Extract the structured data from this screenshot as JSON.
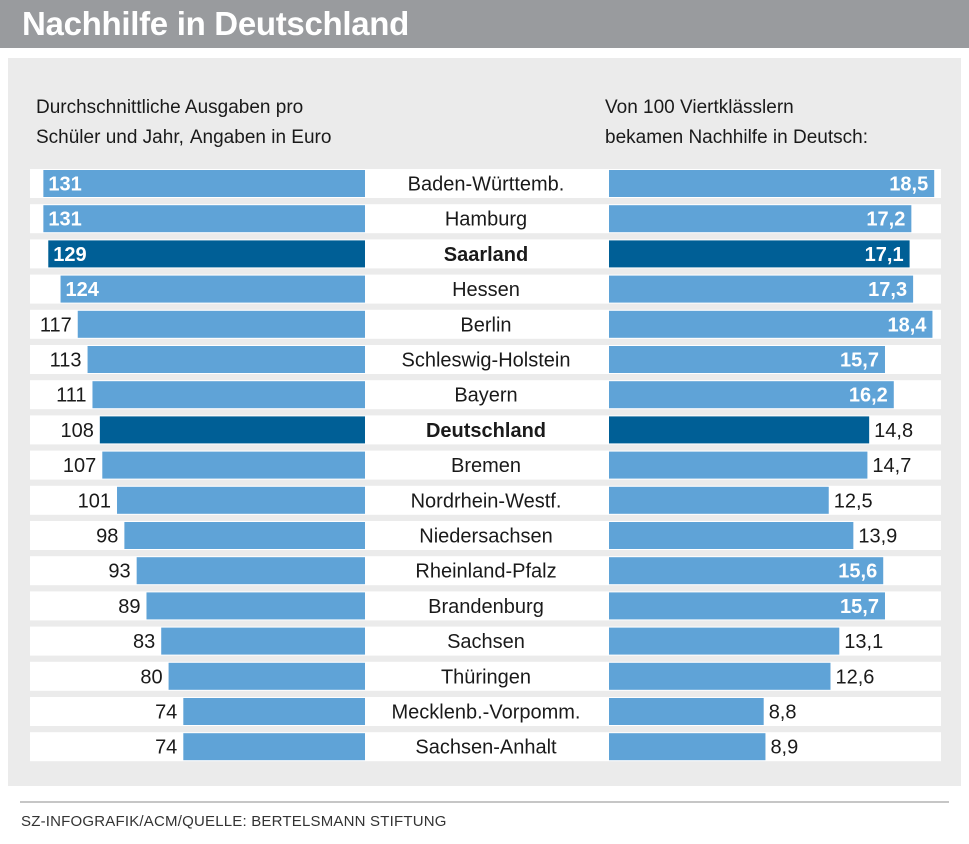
{
  "title": "Nachhilfe in Deutschland",
  "source": "SZ-INFOGRAFIK/ACM/QUELLE: BERTELSMANN STIFTUNG",
  "colors": {
    "bar": "#5fa3d7",
    "highlight": "#005f96",
    "band": "#ffffff",
    "panel": "#ebebeb",
    "header": "#999b9e",
    "text": "#1a1a1a"
  },
  "chart_data": [
    {
      "type": "bar",
      "orientation": "horizontal",
      "direction": "right-to-left",
      "title_line1": "Durchschnittliche Ausgaben pro",
      "title_line2": "Schüler und Jahr,",
      "title_unit": "Angaben in Euro",
      "categories": [
        "Baden-Württemb.",
        "Hamburg",
        "Saarland",
        "Hessen",
        "Berlin",
        "Schleswig-Holstein",
        "Bayern",
        "Deutschland",
        "Bremen",
        "Nordrhein-Westf.",
        "Niedersachsen",
        "Rheinland-Pfalz",
        "Brandenburg",
        "Sachsen",
        "Thüringen",
        "Mecklenb.-Vorpomm.",
        "Sachsen-Anhalt"
      ],
      "values": [
        131,
        131,
        129,
        124,
        117,
        113,
        111,
        108,
        107,
        101,
        98,
        93,
        89,
        83,
        80,
        74,
        74
      ],
      "labels": [
        "131",
        "131",
        "129",
        "124",
        "117",
        "113",
        "111",
        "108",
        "107",
        "101",
        "98",
        "93",
        "89",
        "83",
        "80",
        "74",
        "74"
      ],
      "highlighted": [
        "Saarland",
        "Deutschland"
      ],
      "xlim": [
        0,
        134
      ]
    },
    {
      "type": "bar",
      "orientation": "horizontal",
      "direction": "left-to-right",
      "title_line1": "Von 100 Viertklässlern",
      "title_line2": "bekamen Nachhilfe in Deutsch:",
      "categories": [
        "Baden-Württemb.",
        "Hamburg",
        "Saarland",
        "Hessen",
        "Berlin",
        "Schleswig-Holstein",
        "Bayern",
        "Deutschland",
        "Bremen",
        "Nordrhein-Westf.",
        "Niedersachsen",
        "Rheinland-Pfalz",
        "Brandenburg",
        "Sachsen",
        "Thüringen",
        "Mecklenb.-Vorpomm.",
        "Sachsen-Anhalt"
      ],
      "values": [
        18.5,
        17.2,
        17.1,
        17.3,
        18.4,
        15.7,
        16.2,
        14.8,
        14.7,
        12.5,
        13.9,
        15.6,
        15.7,
        13.1,
        12.6,
        8.8,
        8.9
      ],
      "labels": [
        "18,5",
        "17,2",
        "17,1",
        "17,3",
        "18,4",
        "15,7",
        "16,2",
        "14,8",
        "14,7",
        "12,5",
        "13,9",
        "15,6",
        "15,7",
        "13,1",
        "12,6",
        "8,8",
        "8,9"
      ],
      "highlighted": [
        "Saarland",
        "Deutschland"
      ],
      "xlim": [
        0,
        19
      ]
    }
  ]
}
